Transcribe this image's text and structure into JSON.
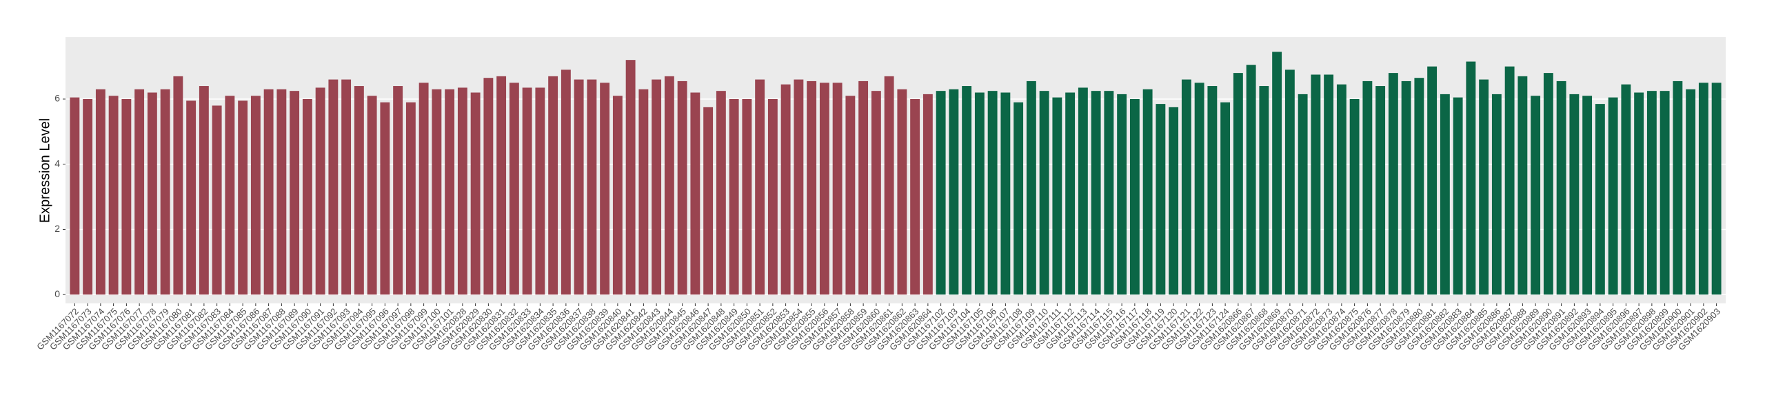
{
  "chart_data": {
    "type": "bar",
    "y_label": "Expression Level",
    "categories": [
      "GSM1167072",
      "GSM1167073",
      "GSM1167074",
      "GSM1167075",
      "GSM1167076",
      "GSM1167077",
      "GSM1167078",
      "GSM1167079",
      "GSM1167080",
      "GSM1167081",
      "GSM1167082",
      "GSM1167083",
      "GSM1167084",
      "GSM1167085",
      "GSM1167086",
      "GSM1167087",
      "GSM1167088",
      "GSM1167089",
      "GSM1167090",
      "GSM1167091",
      "GSM1167092",
      "GSM1167093",
      "GSM1167094",
      "GSM1167095",
      "GSM1167096",
      "GSM1167097",
      "GSM1167098",
      "GSM1167099",
      "GSM1167100",
      "GSM1167101",
      "GSM1620828",
      "GSM1620829",
      "GSM1620830",
      "GSM1620831",
      "GSM1620832",
      "GSM1620833",
      "GSM1620834",
      "GSM1620835",
      "GSM1620836",
      "GSM1620837",
      "GSM1620838",
      "GSM1620839",
      "GSM1620840",
      "GSM1620841",
      "GSM1620842",
      "GSM1620843",
      "GSM1620844",
      "GSM1620845",
      "GSM1620846",
      "GSM1620847",
      "GSM1620848",
      "GSM1620849",
      "GSM1620850",
      "GSM1620851",
      "GSM1620852",
      "GSM1620853",
      "GSM1620854",
      "GSM1620855",
      "GSM1620856",
      "GSM1620857",
      "GSM1620858",
      "GSM1620859",
      "GSM1620860",
      "GSM1620861",
      "GSM1620862",
      "GSM1620863",
      "GSM1620864",
      "GSM1167102",
      "GSM1167103",
      "GSM1167104",
      "GSM1167105",
      "GSM1167106",
      "GSM1167107",
      "GSM1167108",
      "GSM1167109",
      "GSM1167110",
      "GSM1167111",
      "GSM1167112",
      "GSM1167113",
      "GSM1167114",
      "GSM1167115",
      "GSM1167116",
      "GSM1167117",
      "GSM1167118",
      "GSM1167119",
      "GSM1167120",
      "GSM1167121",
      "GSM1167122",
      "GSM1167123",
      "GSM1167124",
      "GSM1620866",
      "GSM1620867",
      "GSM1620868",
      "GSM1620869",
      "GSM1620870",
      "GSM1620871",
      "GSM1620872",
      "GSM1620873",
      "GSM1620874",
      "GSM1620875",
      "GSM1620876",
      "GSM1620877",
      "GSM1620878",
      "GSM1620879",
      "GSM1620880",
      "GSM1620881",
      "GSM1620882",
      "GSM1620883",
      "GSM1620884",
      "GSM1620885",
      "GSM1620886",
      "GSM1620887",
      "GSM1620888",
      "GSM1620889",
      "GSM1620890",
      "GSM1620891",
      "GSM1620892",
      "GSM1620893",
      "GSM1620894",
      "GSM1620895",
      "GSM1620896",
      "GSM1620897",
      "GSM1620898",
      "GSM1620899",
      "GSM1620900",
      "GSM1620901",
      "GSM1620902",
      "GSM1620903"
    ],
    "series": [
      {
        "color": "#9a4450",
        "values": [
          6.05,
          6.0,
          6.3,
          6.1,
          6.0,
          6.3,
          6.2,
          6.3,
          6.7,
          5.95,
          6.4,
          5.8,
          6.1,
          5.95,
          6.1,
          6.3,
          6.3,
          6.25,
          6.0,
          6.35,
          6.6,
          6.6,
          6.4,
          6.1,
          5.9,
          6.4,
          5.9,
          6.5,
          6.3,
          6.3,
          6.35,
          6.2,
          6.65,
          6.7,
          6.5,
          6.35,
          6.35,
          6.7,
          6.9,
          6.6,
          6.6,
          6.5,
          6.1,
          7.2,
          6.3,
          6.6,
          6.7,
          6.55,
          6.2,
          5.75,
          6.25,
          6.0,
          6.0,
          6.6,
          6.0,
          6.45,
          6.6,
          6.55,
          6.5,
          6.5,
          6.1,
          6.55,
          6.25,
          6.7,
          6.3,
          6.0,
          6.15,
          null,
          null,
          null,
          null,
          null,
          null,
          null,
          null,
          null,
          null,
          null,
          null,
          null,
          null,
          null,
          null,
          null,
          null,
          null,
          null,
          null,
          null,
          null,
          null,
          null,
          null,
          null,
          null,
          null,
          null,
          null,
          null,
          null,
          null,
          null,
          null,
          null,
          null,
          null,
          null,
          null,
          null,
          null,
          null,
          null,
          null,
          null,
          null,
          null,
          null,
          null,
          null,
          null,
          null,
          null,
          null,
          null,
          null,
          null,
          null,
          null
        ]
      },
      {
        "color": "#0b6646",
        "values": [
          null,
          null,
          null,
          null,
          null,
          null,
          null,
          null,
          null,
          null,
          null,
          null,
          null,
          null,
          null,
          null,
          null,
          null,
          null,
          null,
          null,
          null,
          null,
          null,
          null,
          null,
          null,
          null,
          null,
          null,
          null,
          null,
          null,
          null,
          null,
          null,
          null,
          null,
          null,
          null,
          null,
          null,
          null,
          null,
          null,
          null,
          null,
          null,
          null,
          null,
          null,
          null,
          null,
          null,
          null,
          null,
          null,
          null,
          null,
          null,
          null,
          null,
          null,
          null,
          null,
          null,
          null,
          6.25,
          6.3,
          6.4,
          6.2,
          6.25,
          6.2,
          5.9,
          6.55,
          6.25,
          6.05,
          6.2,
          6.35,
          6.25,
          6.25,
          6.15,
          6.0,
          6.3,
          5.85,
          5.75,
          6.6,
          6.5,
          6.4,
          5.9,
          6.8,
          7.05,
          6.4,
          7.45,
          6.9,
          6.15,
          6.75,
          6.75,
          6.45,
          6.0,
          6.55,
          6.4,
          6.8,
          6.55,
          6.65,
          7.0,
          6.15,
          6.05,
          7.15,
          6.6,
          6.15,
          7.0,
          6.7,
          6.1,
          6.8,
          6.55,
          6.15,
          6.1,
          5.85,
          6.05,
          6.45,
          6.2,
          6.25,
          6.25,
          6.55,
          6.3,
          6.5,
          6.5
        ]
      }
    ],
    "ylim": [
      -0.27,
      7.9
    ],
    "yticks": [
      0,
      2,
      4,
      6
    ],
    "grid": true
  }
}
